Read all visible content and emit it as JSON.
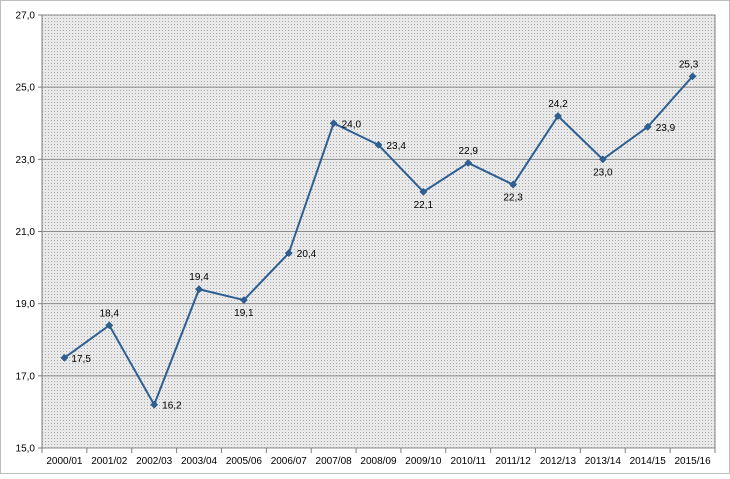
{
  "chart_data": {
    "type": "line",
    "categories": [
      "2000/01",
      "2001/02",
      "2002/03",
      "2003/04",
      "2005/06",
      "2006/07",
      "2007/08",
      "2008/09",
      "2009/10",
      "2010/11",
      "2011/12",
      "2012/13",
      "2013/14",
      "2014/15",
      "2015/16"
    ],
    "series": [
      {
        "values": [
          17.5,
          18.4,
          16.2,
          19.4,
          19.1,
          20.4,
          24.0,
          23.4,
          22.1,
          22.9,
          22.3,
          24.2,
          23.0,
          23.9,
          25.3
        ],
        "labels": [
          "17,5",
          "18,4",
          "16,2",
          "19,4",
          "19,1",
          "20,4",
          "24,0",
          "23,4",
          "22,1",
          "22,9",
          "22,3",
          "24,2",
          "23,0",
          "23,9",
          "25,3"
        ],
        "color": "#2e5f93"
      }
    ],
    "yticks": [
      15.0,
      17.0,
      19.0,
      21.0,
      23.0,
      25.0,
      27.0
    ],
    "ytick_labels": [
      "15,0",
      "17,0",
      "19,0",
      "21,0",
      "23,0",
      "25,0",
      "27,0"
    ],
    "ylim": [
      15.0,
      27.0
    ],
    "title": "",
    "xlabel": "",
    "ylabel": "",
    "grid": true,
    "plot_background": "#dcdcdc",
    "gridline_color": "#8c8c8c",
    "marker": "diamond"
  }
}
